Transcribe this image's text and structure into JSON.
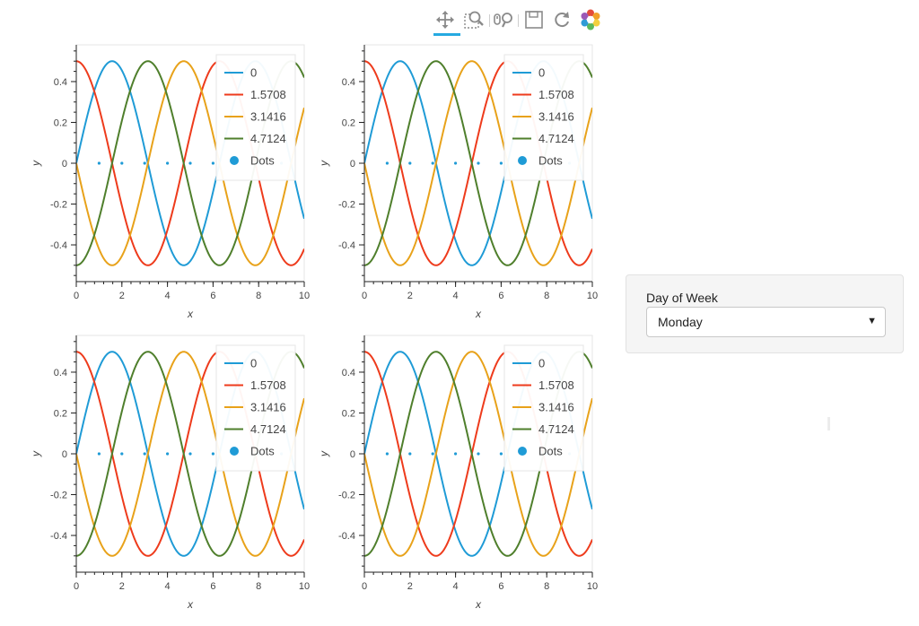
{
  "toolbar": {
    "tools": [
      {
        "name": "pan-tool",
        "icon": "move-arrows-icon",
        "active": true
      },
      {
        "name": "box-zoom-tool",
        "icon": "box-zoom-icon",
        "active": false
      },
      {
        "name": "wheel-zoom-tool",
        "icon": "wheel-zoom-icon",
        "active": false
      },
      {
        "name": "save-tool",
        "icon": "save-icon",
        "active": false
      },
      {
        "name": "reset-tool",
        "icon": "reset-icon",
        "active": false
      },
      {
        "name": "bokeh-logo",
        "icon": "bokeh-logo-icon",
        "active": false
      }
    ],
    "accent_color": "#26aae1"
  },
  "plots": [
    {
      "id": "top-left"
    },
    {
      "id": "top-right"
    },
    {
      "id": "bottom-left"
    },
    {
      "id": "bottom-right"
    }
  ],
  "chart_data": [
    {
      "type": "line",
      "xlabel": "x",
      "ylabel": "y",
      "xlim": [
        0,
        10
      ],
      "ylim": [
        -0.58,
        0.58
      ],
      "x_ticks": [
        "0",
        "2",
        "4",
        "6",
        "8",
        "10"
      ],
      "y_ticks": [
        "0.4",
        "0.2",
        "0",
        "-0.2",
        "-0.4"
      ],
      "y_tick_values": [
        0.4,
        0.2,
        0,
        -0.2,
        -0.4
      ],
      "x_tick_values": [
        0,
        2,
        4,
        6,
        8,
        10
      ],
      "legend_position": "top-right",
      "series": [
        {
          "name": "0",
          "function": "0.5*sin(x - 0)",
          "phase": 0,
          "amplitude": 0.5,
          "color": "#1f9bd6"
        },
        {
          "name": "1.5708",
          "function": "0.5*sin(x + 1.5708)",
          "phase": 1.5708,
          "amplitude": 0.5,
          "color": "#ee3b1c"
        },
        {
          "name": "3.1416",
          "function": "0.5*sin(x + 3.1416)",
          "phase": 3.1416,
          "amplitude": 0.5,
          "color": "#e8a21a"
        },
        {
          "name": "4.7124",
          "function": "0.5*sin(x + 4.7124)",
          "phase": 4.7124,
          "amplitude": 0.5,
          "color": "#4f7f2c"
        }
      ],
      "dots": {
        "name": "Dots",
        "x": [
          1,
          2,
          3,
          4,
          5,
          6,
          7,
          8,
          9
        ],
        "y": [
          0,
          0,
          0,
          0,
          0,
          0,
          0,
          0,
          0
        ],
        "color": "#1f9bd6"
      }
    },
    {
      "type": "line",
      "xlabel": "x",
      "ylabel": "y",
      "xlim": [
        0,
        10
      ],
      "ylim": [
        -0.58,
        0.58
      ],
      "x_ticks": [
        "0",
        "2",
        "4",
        "6",
        "8",
        "10"
      ],
      "y_ticks": [
        "0.4",
        "0.2",
        "0",
        "-0.2",
        "-0.4"
      ],
      "y_tick_values": [
        0.4,
        0.2,
        0,
        -0.2,
        -0.4
      ],
      "x_tick_values": [
        0,
        2,
        4,
        6,
        8,
        10
      ],
      "legend_position": "top-right",
      "series": [
        {
          "name": "0",
          "function": "0.5*sin(x - 0)",
          "phase": 0,
          "amplitude": 0.5,
          "color": "#1f9bd6"
        },
        {
          "name": "1.5708",
          "function": "0.5*sin(x + 1.5708)",
          "phase": 1.5708,
          "amplitude": 0.5,
          "color": "#ee3b1c"
        },
        {
          "name": "3.1416",
          "function": "0.5*sin(x + 3.1416)",
          "phase": 3.1416,
          "amplitude": 0.5,
          "color": "#e8a21a"
        },
        {
          "name": "4.7124",
          "function": "0.5*sin(x + 4.7124)",
          "phase": 4.7124,
          "amplitude": 0.5,
          "color": "#4f7f2c"
        }
      ],
      "dots": {
        "name": "Dots",
        "x": [
          1,
          2,
          3,
          4,
          5,
          6,
          7,
          8,
          9
        ],
        "y": [
          0,
          0,
          0,
          0,
          0,
          0,
          0,
          0,
          0
        ],
        "color": "#1f9bd6"
      }
    },
    {
      "type": "line",
      "xlabel": "x",
      "ylabel": "y",
      "xlim": [
        0,
        10
      ],
      "ylim": [
        -0.58,
        0.58
      ],
      "x_ticks": [
        "0",
        "2",
        "4",
        "6",
        "8",
        "10"
      ],
      "y_ticks": [
        "0.4",
        "0.2",
        "0",
        "-0.2",
        "-0.4"
      ],
      "y_tick_values": [
        0.4,
        0.2,
        0,
        -0.2,
        -0.4
      ],
      "x_tick_values": [
        0,
        2,
        4,
        6,
        8,
        10
      ],
      "legend_position": "top-right",
      "series": [
        {
          "name": "0",
          "function": "0.5*sin(x - 0)",
          "phase": 0,
          "amplitude": 0.5,
          "color": "#1f9bd6"
        },
        {
          "name": "1.5708",
          "function": "0.5*sin(x + 1.5708)",
          "phase": 1.5708,
          "amplitude": 0.5,
          "color": "#ee3b1c"
        },
        {
          "name": "3.1416",
          "function": "0.5*sin(x + 3.1416)",
          "phase": 3.1416,
          "amplitude": 0.5,
          "color": "#e8a21a"
        },
        {
          "name": "4.7124",
          "function": "0.5*sin(x + 4.7124)",
          "phase": 4.7124,
          "amplitude": 0.5,
          "color": "#4f7f2c"
        }
      ],
      "dots": {
        "name": "Dots",
        "x": [
          1,
          2,
          3,
          4,
          5,
          6,
          7,
          8,
          9
        ],
        "y": [
          0,
          0,
          0,
          0,
          0,
          0,
          0,
          0,
          0
        ],
        "color": "#1f9bd6"
      }
    },
    {
      "type": "line",
      "xlabel": "x",
      "ylabel": "y",
      "xlim": [
        0,
        10
      ],
      "ylim": [
        -0.58,
        0.58
      ],
      "x_ticks": [
        "0",
        "2",
        "4",
        "6",
        "8",
        "10"
      ],
      "y_ticks": [
        "0.4",
        "0.2",
        "0",
        "-0.2",
        "-0.4"
      ],
      "y_tick_values": [
        0.4,
        0.2,
        0,
        -0.2,
        -0.4
      ],
      "x_tick_values": [
        0,
        2,
        4,
        6,
        8,
        10
      ],
      "legend_position": "top-right",
      "series": [
        {
          "name": "0",
          "function": "0.5*sin(x - 0)",
          "phase": 0,
          "amplitude": 0.5,
          "color": "#1f9bd6"
        },
        {
          "name": "1.5708",
          "function": "0.5*sin(x + 1.5708)",
          "phase": 1.5708,
          "amplitude": 0.5,
          "color": "#ee3b1c"
        },
        {
          "name": "3.1416",
          "function": "0.5*sin(x + 3.1416)",
          "phase": 3.1416,
          "amplitude": 0.5,
          "color": "#e8a21a"
        },
        {
          "name": "4.7124",
          "function": "0.5*sin(x + 4.7124)",
          "phase": 4.7124,
          "amplitude": 0.5,
          "color": "#4f7f2c"
        }
      ],
      "dots": {
        "name": "Dots",
        "x": [
          1,
          2,
          3,
          4,
          5,
          6,
          7,
          8,
          9
        ],
        "y": [
          0,
          0,
          0,
          0,
          0,
          0,
          0,
          0,
          0
        ],
        "color": "#1f9bd6"
      }
    }
  ],
  "widget": {
    "label": "Day of Week",
    "select_value": "Monday",
    "dropdown_arrow": "▼"
  }
}
